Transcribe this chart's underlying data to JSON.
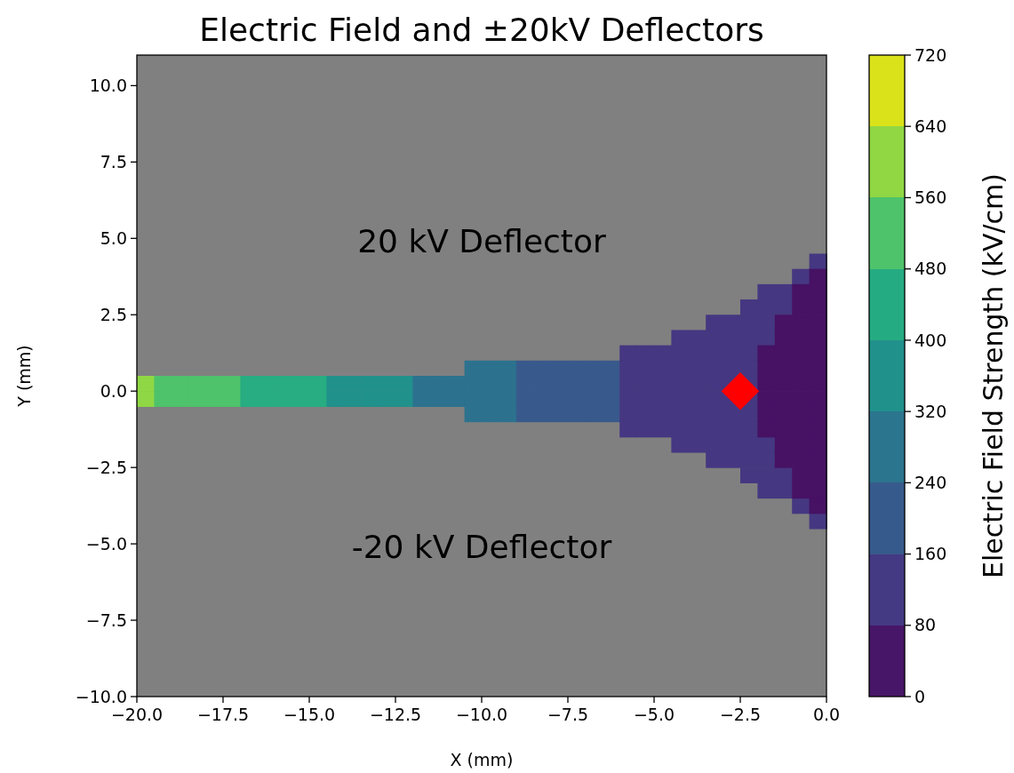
{
  "chart_data": {
    "type": "scatter",
    "title": "Electric Field and ±20kV Deflectors",
    "xlabel": "X (mm)",
    "ylabel": "Y (mm)",
    "clabel": "Electric Field Strength (kV/cm)",
    "xlim": [
      -20,
      0
    ],
    "xticks": [
      {
        "value": -20,
        "label": "−20.0"
      },
      {
        "value": -17.5,
        "label": "−17.5"
      },
      {
        "value": -15,
        "label": "−15.0"
      },
      {
        "value": -12.5,
        "label": "−12.5"
      },
      {
        "value": -10,
        "label": "−10.0"
      },
      {
        "value": -7.5,
        "label": "−7.5"
      },
      {
        "value": -5,
        "label": "−5.0"
      },
      {
        "value": -2.5,
        "label": "−2.5"
      },
      {
        "value": 0,
        "label": "0.0"
      }
    ],
    "ylim": [
      -10,
      11
    ],
    "yticks": [
      {
        "value": -10,
        "label": "−10.0"
      },
      {
        "value": -7.5,
        "label": "−7.5"
      },
      {
        "value": -5,
        "label": "−5.0"
      },
      {
        "value": -2.5,
        "label": "−2.5"
      },
      {
        "value": 0,
        "label": "0.0"
      },
      {
        "value": 2.5,
        "label": "2.5"
      },
      {
        "value": 5,
        "label": "5.0"
      },
      {
        "value": 7.5,
        "label": "7.5"
      },
      {
        "value": 10,
        "label": "10.0"
      }
    ],
    "clim": [
      0,
      720
    ],
    "cticks": [
      0,
      80,
      160,
      240,
      320,
      400,
      480,
      560,
      640,
      720
    ],
    "marker": "square",
    "series": [
      {
        "color": "#8fd744",
        "x": [
          -19.75,
          -19.75
        ],
        "values": [
          0.25,
          -0.25
        ]
      },
      {
        "color": "#4ec36b",
        "x": [
          -19.25,
          -19.25,
          -18.75,
          -18.75,
          -18.25,
          -18.25,
          -17.75,
          -17.75,
          -17.25,
          -17.25
        ],
        "values": [
          0.25,
          -0.25,
          0.25,
          -0.25,
          0.25,
          -0.25,
          0.25,
          -0.25,
          0.25,
          -0.25
        ]
      },
      {
        "color": "#27ad81",
        "x": [
          -16.75,
          -16.75,
          -16.25,
          -16.25,
          -15.75,
          -15.75,
          -15.25,
          -15.25,
          -14.75,
          -14.75
        ],
        "values": [
          0.25,
          -0.25,
          0.25,
          -0.25,
          0.25,
          -0.25,
          0.25,
          -0.25,
          0.25,
          -0.25
        ]
      },
      {
        "color": "#21918c",
        "x": [
          -14.25,
          -14.25,
          -13.75,
          -13.75,
          -13.25,
          -13.25,
          -12.75,
          -12.75,
          -12.25,
          -12.25
        ],
        "values": [
          0.25,
          -0.25,
          0.25,
          -0.25,
          0.25,
          -0.25,
          0.25,
          -0.25,
          0.25,
          -0.25
        ]
      },
      {
        "color": "#2c728e",
        "x": [
          -11.75,
          -11.75,
          -11.25,
          -11.25,
          -10.75,
          -10.75,
          -10.25,
          -10.25,
          -10.25,
          -10.25,
          -9.75,
          -9.75,
          -9.75,
          -9.75,
          -9.25,
          -9.25,
          -9.25,
          -9.25
        ],
        "values": [
          0.25,
          -0.25,
          0.25,
          -0.25,
          0.25,
          -0.25,
          0.75,
          0.25,
          -0.25,
          -0.75,
          0.75,
          0.25,
          -0.25,
          -0.75,
          0.75,
          0.25,
          -0.25,
          -0.75
        ]
      },
      {
        "color": "#38598c",
        "x": [
          -8.75,
          -8.75,
          -8.75,
          -8.75,
          -8.25,
          -8.25,
          -8.25,
          -8.25,
          -7.75,
          -7.75,
          -7.75,
          -7.75,
          -7.25,
          -7.25,
          -7.25,
          -7.25,
          -6.75,
          -6.75,
          -6.75,
          -6.75,
          -6.25,
          -6.25,
          -6.25,
          -6.25
        ],
        "values": [
          0.75,
          0.25,
          -0.25,
          -0.75,
          0.75,
          0.25,
          -0.25,
          -0.75,
          0.75,
          0.25,
          -0.25,
          -0.75,
          0.75,
          0.25,
          -0.25,
          -0.75,
          0.75,
          0.25,
          -0.25,
          -0.75,
          0.75,
          0.25,
          -0.25,
          -0.75
        ]
      },
      {
        "color": "#453781",
        "x": [
          -5.75,
          -5.75,
          -5.75,
          -5.75,
          -5.75,
          -5.75,
          -5.25,
          -5.25,
          -5.25,
          -5.25,
          -5.25,
          -5.25,
          -4.75,
          -4.75,
          -4.75,
          -4.75,
          -4.75,
          -4.75,
          -4.25,
          -4.25,
          -4.25,
          -4.25,
          -4.25,
          -4.25,
          -4.25,
          -4.25,
          -3.75,
          -3.75,
          -3.75,
          -3.75,
          -3.75,
          -3.75,
          -3.75,
          -3.75,
          -3.25,
          -3.25,
          -3.25,
          -3.25,
          -3.25,
          -3.25,
          -3.25,
          -3.25,
          -3.25,
          -3.25,
          -2.75,
          -2.75,
          -2.75,
          -2.75,
          -2.75,
          -2.75,
          -2.75,
          -2.75,
          -2.75,
          -2.75,
          -2.25,
          -2.25,
          -2.25,
          -2.25,
          -2.25,
          -2.25,
          -2.25,
          -2.25,
          -2.25,
          -2.25,
          -2.25,
          -2.25,
          -1.75,
          -1.75,
          -1.75,
          -1.75,
          -1.75,
          -1.75,
          -1.75,
          -1.75,
          -1.25,
          -1.25,
          -1.25,
          -1.25,
          -0.75,
          -0.75,
          -0.25,
          -0.25
        ],
        "values": [
          1.25,
          0.75,
          0.25,
          -0.25,
          -0.75,
          -1.25,
          1.25,
          0.75,
          0.25,
          -0.25,
          -0.75,
          -1.25,
          1.25,
          0.75,
          0.25,
          -0.25,
          -0.75,
          -1.25,
          1.75,
          1.25,
          0.75,
          0.25,
          -0.25,
          -0.75,
          -1.25,
          -1.75,
          1.75,
          1.25,
          0.75,
          0.25,
          -0.25,
          -0.75,
          -1.25,
          -1.75,
          2.25,
          1.75,
          1.25,
          0.75,
          0.25,
          -0.25,
          -0.75,
          -1.25,
          -1.75,
          -2.25,
          2.25,
          1.75,
          1.25,
          0.75,
          0.25,
          -0.25,
          -0.75,
          -1.25,
          -1.75,
          -2.25,
          2.75,
          2.25,
          1.75,
          1.25,
          0.75,
          0.25,
          -0.25,
          -0.75,
          -1.25,
          -1.75,
          -2.25,
          -2.75,
          3.25,
          2.75,
          2.25,
          1.75,
          -1.75,
          -2.25,
          -2.75,
          -3.25,
          3.25,
          2.75,
          -2.75,
          -3.25,
          3.75,
          -3.75,
          4.25,
          -4.25
        ]
      },
      {
        "color": "#471164",
        "x": [
          -1.75,
          -1.75,
          -1.75,
          -1.75,
          -1.75,
          -1.75,
          -1.25,
          -1.25,
          -1.25,
          -1.25,
          -1.25,
          -1.25,
          -1.25,
          -1.25,
          -1.25,
          -1.25,
          -0.75,
          -0.75,
          -0.75,
          -0.75,
          -0.75,
          -0.75,
          -0.75,
          -0.75,
          -0.75,
          -0.75,
          -0.75,
          -0.75,
          -0.75,
          -0.75,
          -0.25,
          -0.25,
          -0.25,
          -0.25,
          -0.25,
          -0.25,
          -0.25,
          -0.25,
          -0.25,
          -0.25,
          -0.25,
          -0.25,
          -0.25,
          -0.25,
          -0.25,
          -0.25
        ],
        "values": [
          1.25,
          0.75,
          0.25,
          -0.25,
          -0.75,
          -1.25,
          2.25,
          1.75,
          1.25,
          0.75,
          0.25,
          -0.25,
          -0.75,
          -1.25,
          -1.75,
          -2.25,
          3.25,
          2.75,
          2.25,
          1.75,
          1.25,
          0.75,
          0.25,
          -0.25,
          -0.75,
          -1.25,
          -1.75,
          -2.25,
          -2.75,
          -3.25,
          3.75,
          3.25,
          2.75,
          2.25,
          1.75,
          1.25,
          0.75,
          0.25,
          -0.25,
          -0.75,
          -1.25,
          -1.75,
          -2.25,
          -2.75,
          -3.25,
          -3.75
        ]
      },
      {
        "marker": "diamond",
        "x": [
          -2.5
        ],
        "values": [
          0
        ],
        "color": "#ff0000"
      }
    ],
    "annotations": [
      "20 kV Deflector",
      "-20 kV Deflector"
    ]
  }
}
